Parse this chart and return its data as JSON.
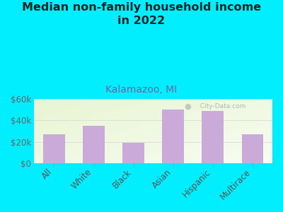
{
  "title_line1": "Median non-family household income\nin 2022",
  "subtitle": "Kalamazoo, MI",
  "categories": [
    "All",
    "White",
    "Black",
    "Asian",
    "Hispanic",
    "Multirace"
  ],
  "values": [
    27000,
    35000,
    19000,
    50000,
    49000,
    27000
  ],
  "bar_color": "#c9aad8",
  "title_fontsize": 11.5,
  "subtitle_fontsize": 10,
  "subtitle_color": "#7b5ea7",
  "title_color": "#222222",
  "background_outer": "#00eeff",
  "ylim": [
    0,
    60000
  ],
  "yticks": [
    0,
    20000,
    40000,
    60000
  ],
  "ytick_labels": [
    "$0",
    "$20k",
    "$40k",
    "$60k"
  ],
  "watermark": "  City-Data.com",
  "xlabel_color": "#555555",
  "tick_color": "#666666",
  "grid_color": "#dddddd"
}
